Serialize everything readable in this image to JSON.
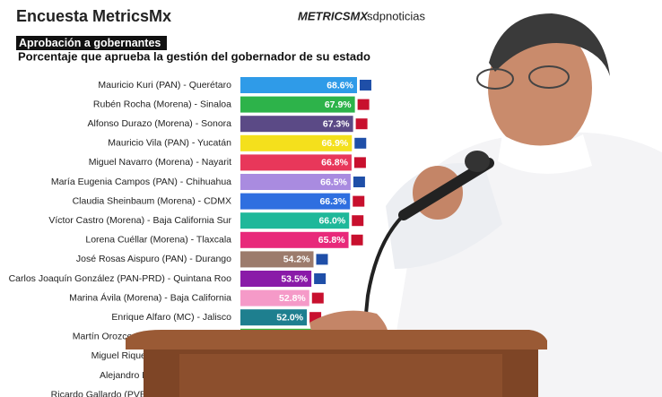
{
  "chart_data": {
    "type": "bar",
    "orientation": "horizontal",
    "title": "Encuesta MetricsMx",
    "logo": "METRICSMX",
    "source": "sdpnoticias",
    "subtitle": "Aprobación a gobernantes",
    "description": "Porcentaje que aprueba la gestión del gobernador de su estado",
    "categories": [
      "Mauricio Kuri (PAN) - Querétaro",
      "Rubén Rocha (Morena) - Sinaloa",
      "Alfonso Durazo (Morena) - Sonora",
      "Mauricio Vila (PAN) - Yucatán",
      "Miguel Navarro (Morena) - Nayarit",
      "María Eugenia Campos (PAN) - Chihuahua",
      "Claudia Sheinbaum (Morena) - CDMX",
      "Víctor Castro (Morena) - Baja California Sur",
      "Lorena Cuéllar (Morena) - Tlaxcala",
      "José Rosas Aispuro (PAN) - Durango",
      "Carlos Joaquín González (PAN-PRD) - Quintana Roo",
      "Marina Ávila (Morena) - Baja California",
      "Enrique Alfaro (MC) - Jalisco",
      "Martín Orozco (PAN) - Aguascalientes",
      "Miguel Riquelme (PRI) - Coahuila",
      "Alejandro Murat (PRI) - Oaxaca",
      "Ricardo Gallardo (PVEM) - San Luis Potosí"
    ],
    "values": [
      68.6,
      67.9,
      67.3,
      66.9,
      66.8,
      66.5,
      66.3,
      66.0,
      65.8,
      54.2,
      53.5,
      52.8,
      52.0,
      null,
      null,
      null,
      null
    ],
    "value_labels": [
      "68.6%",
      "67.9%",
      "67.3%",
      "66.9%",
      "66.8%",
      "66.5%",
      "66.3%",
      "66.0%",
      "65.8%",
      "54.2%",
      "53.5%",
      "52.8%",
      "52.0%",
      null,
      null,
      null,
      null
    ],
    "colors": [
      "#2f9be8",
      "#2db34a",
      "#5b4a86",
      "#f4e01c",
      "#e8375a",
      "#a98be0",
      "#2f6fe0",
      "#1fb89a",
      "#e8297a",
      "#9c7b6c",
      "#8a1aa8",
      "#f59ac8",
      "#1e7f8f",
      "#3dbb3d",
      "#888888",
      "#888888",
      "#888888"
    ],
    "xlim": [
      30,
      70
    ]
  }
}
